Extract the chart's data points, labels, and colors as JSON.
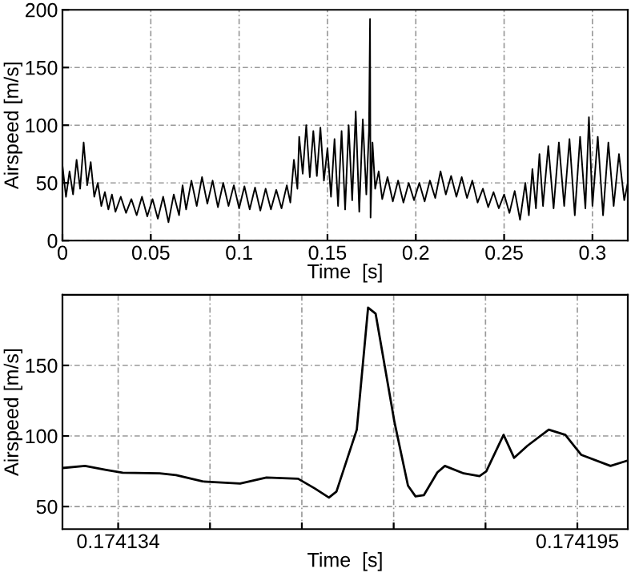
{
  "chart_data": [
    {
      "type": "line",
      "xlabel": "Time  [s]",
      "ylabel": "Airspeed [m/s]",
      "xlim": [
        0,
        0.32
      ],
      "ylim": [
        0,
        200
      ],
      "xticks": [
        0,
        0.05,
        0.1,
        0.15,
        0.2,
        0.25,
        0.3
      ],
      "yticks": [
        0,
        50,
        100,
        150,
        200
      ],
      "grid": true,
      "series": [
        {
          "color": "#000000",
          "x": [
            0.0,
            0.002,
            0.004,
            0.006,
            0.008,
            0.01,
            0.012,
            0.014,
            0.016,
            0.018,
            0.02,
            0.022,
            0.024,
            0.026,
            0.028,
            0.03,
            0.033,
            0.036,
            0.039,
            0.042,
            0.045,
            0.048,
            0.051,
            0.054,
            0.057,
            0.06,
            0.063,
            0.066,
            0.068,
            0.07,
            0.073,
            0.076,
            0.079,
            0.082,
            0.085,
            0.088,
            0.091,
            0.094,
            0.097,
            0.1,
            0.103,
            0.106,
            0.109,
            0.112,
            0.115,
            0.118,
            0.121,
            0.124,
            0.127,
            0.129,
            0.131,
            0.133,
            0.134,
            0.136,
            0.138,
            0.14,
            0.142,
            0.144,
            0.146,
            0.148,
            0.15,
            0.152,
            0.154,
            0.156,
            0.158,
            0.16,
            0.162,
            0.164,
            0.166,
            0.168,
            0.17,
            0.172,
            0.1735,
            0.1741,
            0.1744,
            0.1755,
            0.177,
            0.179,
            0.181,
            0.184,
            0.187,
            0.19,
            0.193,
            0.196,
            0.199,
            0.202,
            0.205,
            0.208,
            0.211,
            0.214,
            0.217,
            0.22,
            0.223,
            0.226,
            0.229,
            0.232,
            0.235,
            0.238,
            0.241,
            0.244,
            0.247,
            0.25,
            0.253,
            0.256,
            0.259,
            0.262,
            0.264,
            0.266,
            0.268,
            0.27,
            0.272,
            0.275,
            0.278,
            0.281,
            0.284,
            0.287,
            0.29,
            0.293,
            0.296,
            0.298,
            0.3,
            0.303,
            0.306,
            0.309,
            0.312,
            0.315,
            0.318,
            0.32
          ],
          "values": [
            65,
            38,
            60,
            40,
            70,
            45,
            85,
            48,
            68,
            38,
            50,
            30,
            42,
            27,
            40,
            25,
            38,
            24,
            36,
            22,
            38,
            21,
            36,
            19,
            38,
            16,
            40,
            22,
            48,
            27,
            52,
            30,
            55,
            32,
            52,
            29,
            50,
            30,
            48,
            28,
            47,
            27,
            46,
            26,
            45,
            27,
            44,
            28,
            48,
            33,
            70,
            45,
            90,
            58,
            100,
            55,
            95,
            56,
            98,
            52,
            80,
            38,
            88,
            30,
            95,
            27,
            100,
            35,
            112,
            25,
            105,
            40,
            95,
            192,
            20,
            85,
            45,
            60,
            36,
            55,
            34,
            52,
            33,
            50,
            35,
            50,
            34,
            52,
            37,
            60,
            40,
            56,
            38,
            55,
            37,
            52,
            33,
            45,
            29,
            42,
            28,
            40,
            24,
            43,
            18,
            50,
            22,
            62,
            28,
            75,
            30,
            82,
            28,
            85,
            30,
            88,
            22,
            90,
            28,
            107,
            30,
            90,
            22,
            85,
            30,
            75,
            35,
            50
          ]
        }
      ]
    },
    {
      "type": "line",
      "xlabel": "Time  [s]",
      "ylabel": "Airspeed [m/s]",
      "xlim": [
        0.1741266,
        0.1742017
      ],
      "ylim": [
        34,
        200
      ],
      "xticks": [
        {
          "value": 0.174134,
          "label": "0.174134"
        },
        {
          "value": 0.1741462,
          "label": null
        },
        {
          "value": 0.1741584,
          "label": null
        },
        {
          "value": 0.1741706,
          "label": null
        },
        {
          "value": 0.1741828,
          "label": null
        },
        {
          "value": 0.174195,
          "label": "0.174195"
        }
      ],
      "yticks": [
        50,
        100,
        150
      ],
      "grid": true,
      "series": [
        {
          "color": "#000000",
          "x": [
            0.1741266,
            0.1741296,
            0.1741324,
            0.1741346,
            0.1741395,
            0.1741417,
            0.1741452,
            0.1741502,
            0.1741537,
            0.1741579,
            0.1741601,
            0.174162,
            0.174163,
            0.1741657,
            0.1741672,
            0.1741682,
            0.1741707,
            0.1741725,
            0.1741735,
            0.1741746,
            0.1741764,
            0.1741774,
            0.1741799,
            0.174182,
            0.1741829,
            0.1741852,
            0.1741866,
            0.1741884,
            0.1741912,
            0.1741934,
            0.1741955,
            0.1741994,
            0.1742017
          ],
          "values": [
            77.3,
            78.8,
            76,
            73.9,
            73.5,
            72.3,
            67.8,
            66.3,
            70.5,
            69.7,
            62.9,
            56.4,
            60.6,
            104.5,
            190.9,
            186.7,
            110,
            64.8,
            57.2,
            58,
            74.2,
            78.8,
            73.5,
            71.6,
            75,
            100.8,
            84.5,
            93.2,
            104.5,
            100.8,
            86.7,
            78.8,
            82.6
          ]
        }
      ]
    }
  ]
}
